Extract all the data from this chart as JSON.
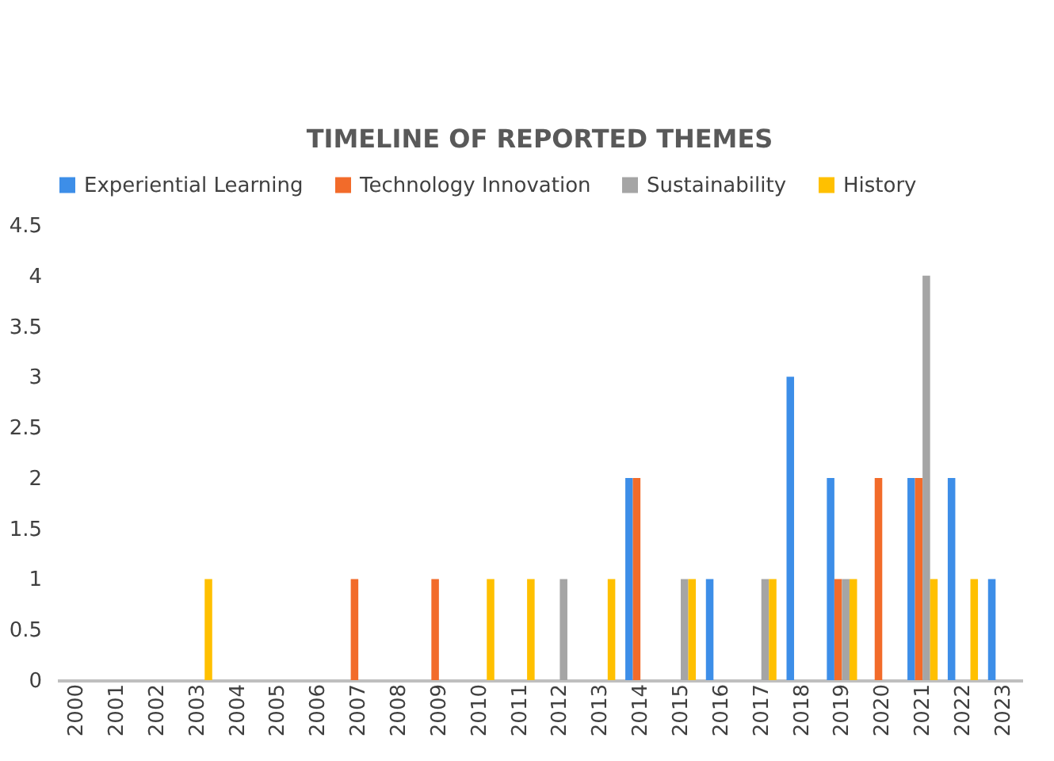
{
  "chart_data": {
    "type": "bar",
    "title": "TIMELINE OF REPORTED THEMES",
    "categories": [
      "2000",
      "2001",
      "2002",
      "2003",
      "2004",
      "2005",
      "2006",
      "2007",
      "2008",
      "2009",
      "2010",
      "2011",
      "2012",
      "2013",
      "2014",
      "2015",
      "2016",
      "2017",
      "2018",
      "2019",
      "2020",
      "2021",
      "2022",
      "2023"
    ],
    "series": [
      {
        "name": "Experiential Learning",
        "color": "#3d8ee8",
        "values": [
          0,
          0,
          0,
          0,
          0,
          0,
          0,
          0,
          0,
          0,
          0,
          0,
          0,
          0,
          2,
          0,
          1,
          0,
          3,
          2,
          0,
          2,
          2,
          1
        ]
      },
      {
        "name": "Technology Innovation",
        "color": "#f26b2a",
        "values": [
          0,
          0,
          0,
          0,
          0,
          0,
          0,
          1,
          0,
          1,
          0,
          0,
          0,
          0,
          2,
          0,
          0,
          0,
          0,
          1,
          2,
          2,
          0,
          0
        ]
      },
      {
        "name": "Sustainability",
        "color": "#a5a5a5",
        "values": [
          0,
          0,
          0,
          0,
          0,
          0,
          0,
          0,
          0,
          0,
          0,
          0,
          1,
          0,
          0,
          1,
          0,
          1,
          0,
          1,
          0,
          4,
          0,
          0
        ]
      },
      {
        "name": "History",
        "color": "#ffc000",
        "values": [
          0,
          0,
          0,
          1,
          0,
          0,
          0,
          0,
          0,
          0,
          1,
          1,
          0,
          1,
          0,
          1,
          0,
          1,
          0,
          1,
          0,
          1,
          1,
          0
        ]
      }
    ],
    "ylim": [
      0,
      4.5
    ],
    "yticks": [
      0,
      0.5,
      1,
      1.5,
      2,
      2.5,
      3,
      3.5,
      4,
      4.5
    ],
    "grid": false,
    "legend": "top"
  }
}
